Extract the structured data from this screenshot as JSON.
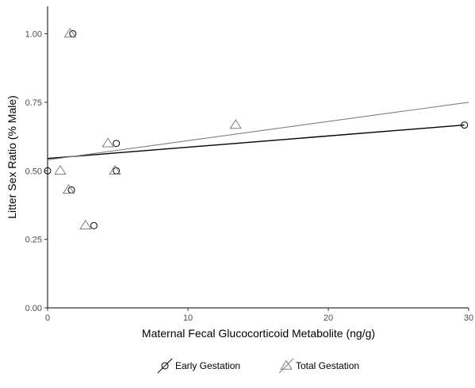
{
  "chart_data": {
    "type": "scatter",
    "title": "",
    "xlabel": "Maternal Fecal Glucocorticoid Metabolite (ng/g)",
    "ylabel": "Litter Sex Ratio (% Male)",
    "xlim": [
      0,
      30
    ],
    "ylim": [
      0,
      1.1
    ],
    "x_ticks": [
      0,
      10,
      20,
      30
    ],
    "x_tick_labels": [
      "0",
      "10",
      "20",
      "30"
    ],
    "y_ticks": [
      0,
      0.25,
      0.5,
      0.75,
      1.0
    ],
    "y_tick_labels": [
      "0.00",
      "0.25",
      "0.50",
      "0.75",
      "1.00"
    ],
    "grid": false,
    "legend_position": "bottom",
    "series": [
      {
        "name": "Early Gestation",
        "marker": "circle",
        "color": "#000000",
        "points": [
          {
            "x": 0.0,
            "y": 0.5
          },
          {
            "x": 1.8,
            "y": 1.0
          },
          {
            "x": 1.7,
            "y": 0.43
          },
          {
            "x": 3.3,
            "y": 0.3
          },
          {
            "x": 4.9,
            "y": 0.6
          },
          {
            "x": 4.9,
            "y": 0.5
          },
          {
            "x": 29.7,
            "y": 0.667
          }
        ],
        "fit": {
          "x": [
            0,
            29.7
          ],
          "y": [
            0.545,
            0.667
          ]
        }
      },
      {
        "name": "Total Gestation",
        "marker": "triangle",
        "color": "#7f7f7f",
        "points": [
          {
            "x": 1.6,
            "y": 1.0
          },
          {
            "x": 0.9,
            "y": 0.5
          },
          {
            "x": 1.5,
            "y": 0.43
          },
          {
            "x": 2.7,
            "y": 0.3
          },
          {
            "x": 4.3,
            "y": 0.6
          },
          {
            "x": 4.8,
            "y": 0.5
          },
          {
            "x": 13.4,
            "y": 0.667
          }
        ],
        "fit": {
          "x": [
            0,
            30
          ],
          "y": [
            0.54,
            0.75
          ]
        }
      }
    ]
  }
}
